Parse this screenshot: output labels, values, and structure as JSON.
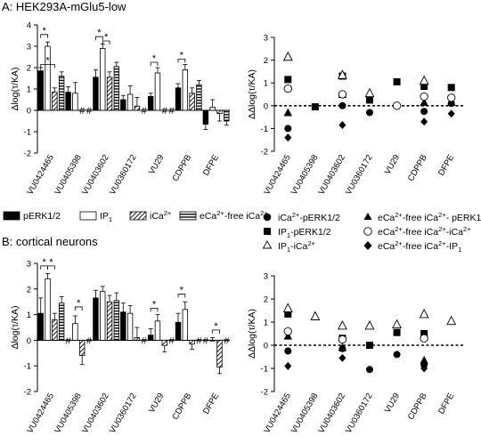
{
  "chart_data": [
    {
      "panel": "A",
      "title": "A: HEK293A-mGlu5-low",
      "type": "bar",
      "ylabel": "Δlog(τ/KA)",
      "ylim": [
        -2,
        4
      ],
      "yticks": [
        -2,
        -1,
        0,
        1,
        2,
        3,
        4
      ],
      "categories": [
        "VU0424465",
        "VU0405398",
        "VU0403602",
        "VU0360172",
        "VU29",
        "CDPPB",
        "DFPE"
      ],
      "series": [
        {
          "name": "pERK1/2",
          "values": [
            1.85,
            0.85,
            1.55,
            0.5,
            0.65,
            1.05,
            -0.65
          ],
          "errors": [
            0.15,
            0.25,
            0.35,
            0.2,
            0.15,
            0.2,
            0.25
          ]
        },
        {
          "name": "IP1",
          "values": [
            3.0,
            0.8,
            2.9,
            0.75,
            1.75,
            1.9,
            0.15
          ],
          "errors": [
            0.2,
            0.5,
            0.2,
            0.4,
            0.25,
            0.25,
            0.35
          ]
        },
        {
          "name": "iCa2+",
          "values": [
            0.85,
            null,
            1.55,
            0.2,
            null,
            0.8,
            -0.15
          ],
          "errors": [
            0.2,
            null,
            0.25,
            0.4,
            null,
            0.25,
            0.35
          ]
        },
        {
          "name": "eCa2+-free iCa2+",
          "values": [
            1.6,
            null,
            2.05,
            null,
            null,
            1.2,
            -0.5
          ],
          "errors": [
            0.2,
            null,
            0.2,
            null,
            null,
            0.2,
            0.2
          ]
        }
      ],
      "sig_labels": [
        "*",
        "*",
        "*",
        "*",
        "*"
      ],
      "na_label": "#"
    },
    {
      "panel": "A-right",
      "type": "scatter",
      "ylabel": "ΔΔlog(τ/KA)",
      "ylim": [
        -2,
        3
      ],
      "yticks": [
        -2,
        -1,
        0,
        1,
        2,
        3
      ],
      "categories": [
        "VU0424465",
        "VU0405398",
        "VU0403602",
        "VU0360172",
        "VU29",
        "CDPPB",
        "DFPE"
      ],
      "series": [
        {
          "name": "iCa2+-pERK1/2",
          "marker": "circle-filled",
          "values": [
            -1.0,
            null,
            0.0,
            -0.3,
            null,
            -0.25,
            0.1
          ]
        },
        {
          "name": "IP1-pERK1/2",
          "marker": "square-filled",
          "values": [
            1.15,
            -0.05,
            1.3,
            0.25,
            1.05,
            0.85,
            0.8
          ]
        },
        {
          "name": "IP1-iCa2+",
          "marker": "triangle-open",
          "values": [
            2.15,
            null,
            1.35,
            0.55,
            null,
            1.1,
            null
          ]
        },
        {
          "name": "eCa2+-free iCa2+- pERK1/2",
          "marker": "triangle-filled",
          "values": [
            -0.3,
            null,
            0.5,
            null,
            null,
            0.15,
            0.15
          ]
        },
        {
          "name": "eCa2+-free iCa2+-iCa2+",
          "marker": "circle-open",
          "values": [
            0.75,
            null,
            0.5,
            null,
            0.0,
            0.4,
            0.35
          ]
        },
        {
          "name": "eCa2+-free iCa2+-IP1",
          "marker": "diamond-filled",
          "values": [
            -1.4,
            null,
            -0.85,
            null,
            null,
            -0.7,
            -0.35
          ]
        }
      ]
    },
    {
      "panel": "B",
      "title": "B: cortical neurons",
      "type": "bar",
      "ylabel": "Δlog(τ/KA)",
      "ylim": [
        -2,
        3
      ],
      "yticks": [
        -2,
        -1,
        0,
        1,
        2,
        3
      ],
      "categories": [
        "VU0424465",
        "VU0405398",
        "VU0403602",
        "VU0360172",
        "VU29",
        "CDPPB",
        "DFPE"
      ],
      "series": [
        {
          "name": "pERK1/2",
          "values": [
            1.05,
            null,
            1.65,
            1.1,
            0.2,
            0.7,
            null
          ],
          "errors": [
            0.6,
            null,
            0.3,
            0.35,
            0.25,
            0.35,
            null
          ]
        },
        {
          "name": "IP1",
          "values": [
            2.4,
            0.65,
            1.9,
            1.05,
            0.75,
            1.2,
            0.0
          ],
          "errors": [
            0.2,
            0.3,
            0.2,
            0.3,
            0.25,
            0.3,
            0.1
          ]
        },
        {
          "name": "iCa2+",
          "values": [
            0.8,
            -0.6,
            1.5,
            0.1,
            -0.2,
            -0.15,
            -1.05
          ],
          "errors": [
            0.25,
            0.35,
            0.25,
            0.4,
            0.25,
            0.2,
            0.25
          ]
        },
        {
          "name": "eCa2+-free iCa2+",
          "values": [
            1.45,
            null,
            1.55,
            null,
            null,
            null,
            null
          ],
          "errors": [
            0.25,
            null,
            0.3,
            null,
            null,
            null,
            null
          ]
        }
      ],
      "sig_labels": [
        "*",
        "*",
        "*",
        "*",
        "*",
        "*"
      ],
      "na_label": "#"
    },
    {
      "panel": "B-right",
      "type": "scatter",
      "ylabel": "ΔΔlog(τ/KA)",
      "ylim": [
        -2,
        3
      ],
      "yticks": [
        -2,
        -1,
        0,
        1,
        2,
        3
      ],
      "categories": [
        "VU0424465",
        "VU0405398",
        "VU0403602",
        "VU0360172",
        "VU29",
        "CDPPB",
        "DFPE"
      ],
      "series": [
        {
          "name": "iCa2+-pERK1/2",
          "marker": "circle-filled",
          "values": [
            -0.25,
            null,
            -0.15,
            -1.05,
            -0.4,
            -0.85,
            null
          ]
        },
        {
          "name": "IP1-pERK1/2",
          "marker": "square-filled",
          "values": [
            1.35,
            null,
            0.3,
            0.0,
            0.55,
            0.5,
            null
          ]
        },
        {
          "name": "IP1-iCa2+",
          "marker": "triangle-open",
          "values": [
            1.6,
            1.25,
            0.85,
            0.85,
            0.9,
            1.35,
            1.05
          ]
        },
        {
          "name": "eCa2+-free iCa2+- pERK1/2",
          "marker": "triangle-filled",
          "values": [
            0.4,
            null,
            -0.1,
            null,
            null,
            -0.65,
            null
          ]
        },
        {
          "name": "eCa2+-free iCa2+-iCa2+",
          "marker": "circle-open",
          "values": [
            0.6,
            null,
            0.25,
            null,
            null,
            0.3,
            null
          ]
        },
        {
          "name": "eCa2+-free iCa2+-IP1",
          "marker": "diamond-filled",
          "values": [
            -0.9,
            null,
            -0.55,
            null,
            null,
            -1.0,
            null
          ]
        }
      ]
    }
  ]
}
